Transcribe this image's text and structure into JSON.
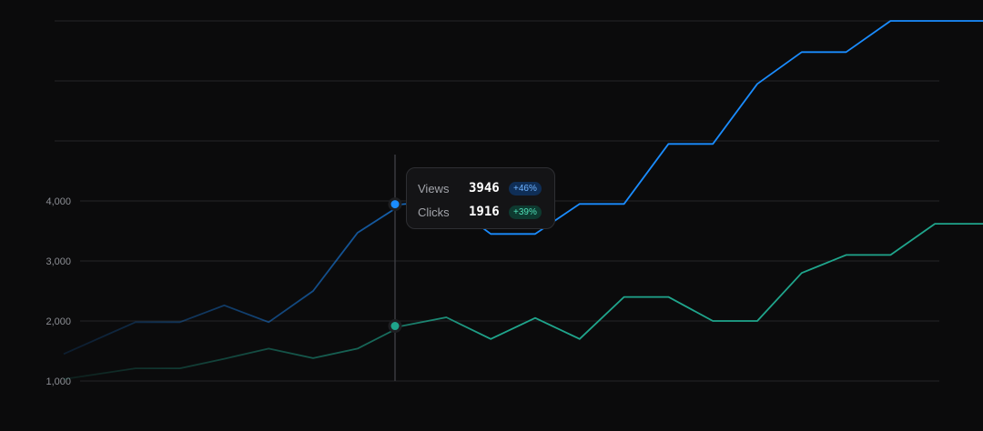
{
  "chart_data": {
    "type": "line",
    "x": [
      1,
      2,
      3,
      4,
      5,
      6,
      7,
      8,
      9,
      10,
      11,
      12,
      13,
      14,
      15,
      16,
      17,
      18,
      19,
      20,
      21,
      22
    ],
    "series": [
      {
        "name": "Views",
        "color": "#1a8cff",
        "values": [
          1450,
          1980,
          1980,
          2260,
          1980,
          2500,
          3470,
          3946,
          4000,
          3450,
          3450,
          3950,
          3950,
          4950,
          4950,
          5950,
          6480,
          6480,
          7000,
          7000,
          7000,
          7000
        ]
      },
      {
        "name": "Clicks",
        "color": "#1fa58c",
        "values": [
          1030,
          1210,
          1210,
          1370,
          1540,
          1380,
          1540,
          1916,
          2060,
          1700,
          2050,
          1700,
          2400,
          2400,
          2000,
          2000,
          2800,
          3100,
          3100,
          3620,
          3620,
          3620
        ]
      }
    ],
    "ylim": [
      1000,
      7000
    ],
    "yticks": [
      "1,000",
      "2,000",
      "3,000",
      "4,000"
    ],
    "grid": true,
    "hover_index": 7
  },
  "tooltip": {
    "views_label": "Views",
    "views_value": "3946",
    "views_change": "+46%",
    "clicks_label": "Clicks",
    "clicks_value": "1916",
    "clicks_change": "+39%"
  }
}
